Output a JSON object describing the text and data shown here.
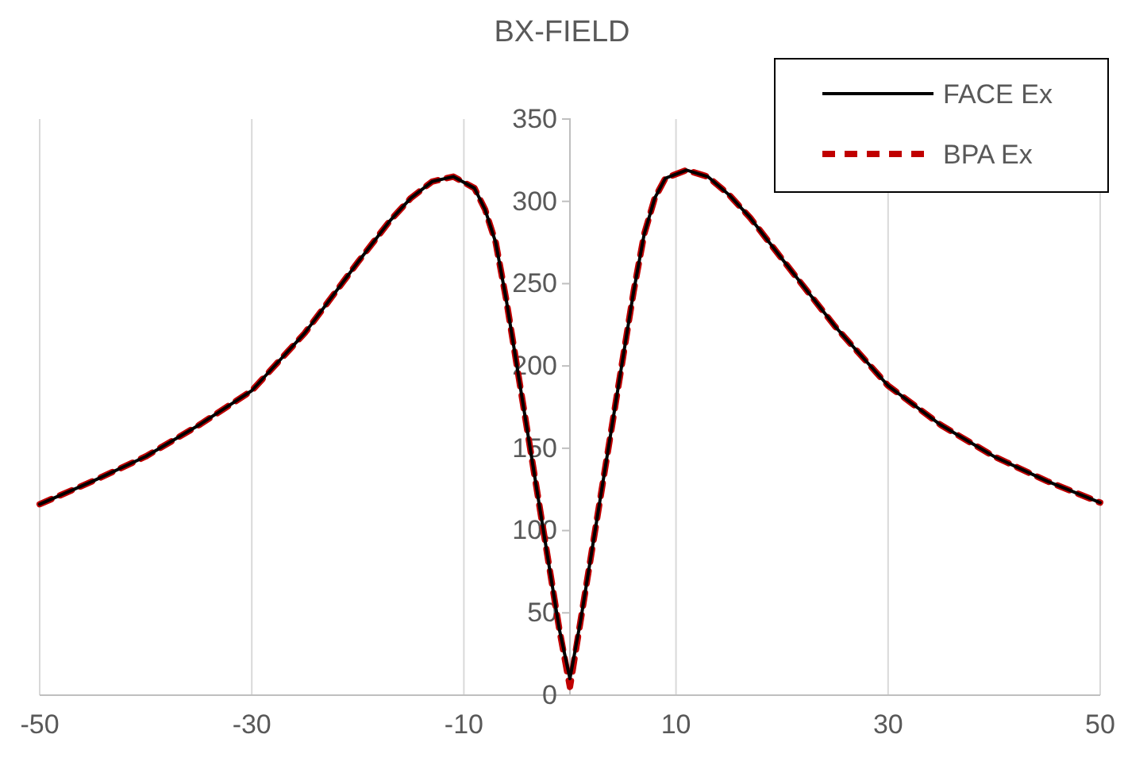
{
  "chart_data": {
    "type": "line",
    "title": "BX-FIELD",
    "xlim": [
      -50,
      50
    ],
    "xticks": [
      -50,
      -30,
      -10,
      10,
      30,
      50
    ],
    "ylim": [
      0,
      350
    ],
    "yticks": [
      0,
      50,
      100,
      150,
      200,
      250,
      300,
      350
    ],
    "grid": "x",
    "legend": "top right",
    "marker": "none",
    "series": [
      {
        "name": "FACE Ex",
        "color": "#000000",
        "line_style": "solid",
        "x": [
          -50,
          -45,
          -40,
          -35,
          -30,
          -25,
          -20,
          -17,
          -15,
          -13,
          -11,
          -9,
          -8,
          -7,
          -6,
          -5,
          -4,
          -3,
          -2,
          -1,
          0,
          1,
          2,
          3,
          4,
          5,
          6,
          7,
          8,
          9,
          11,
          13,
          15,
          17,
          20,
          25,
          30,
          35,
          40,
          45,
          50
        ],
        "values": [
          116,
          130,
          145,
          164,
          185,
          220,
          263,
          288,
          302,
          312,
          315,
          308,
          295,
          275,
          240,
          200,
          160,
          120,
          80,
          40,
          10,
          45,
          85,
          125,
          165,
          205,
          245,
          280,
          302,
          314,
          319,
          315,
          304,
          290,
          265,
          224,
          188,
          164,
          145,
          130,
          117
        ]
      },
      {
        "name": "BPA Ex",
        "color": "#c00000",
        "line_style": "dashed",
        "x": [
          -50,
          -45,
          -40,
          -35,
          -30,
          -25,
          -20,
          -17,
          -15,
          -13,
          -11,
          -9,
          -8,
          -7,
          -6,
          -5,
          -4,
          -3,
          -2,
          -1,
          0,
          1,
          2,
          3,
          4,
          5,
          6,
          7,
          8,
          9,
          11,
          13,
          15,
          17,
          20,
          25,
          30,
          35,
          40,
          45,
          50
        ],
        "values": [
          116,
          130,
          145,
          164,
          185,
          220,
          263,
          288,
          302,
          312,
          315,
          308,
          295,
          275,
          240,
          200,
          160,
          120,
          80,
          40,
          5,
          45,
          85,
          125,
          165,
          205,
          245,
          280,
          302,
          314,
          319,
          315,
          304,
          290,
          265,
          224,
          188,
          164,
          145,
          130,
          117
        ]
      }
    ]
  }
}
